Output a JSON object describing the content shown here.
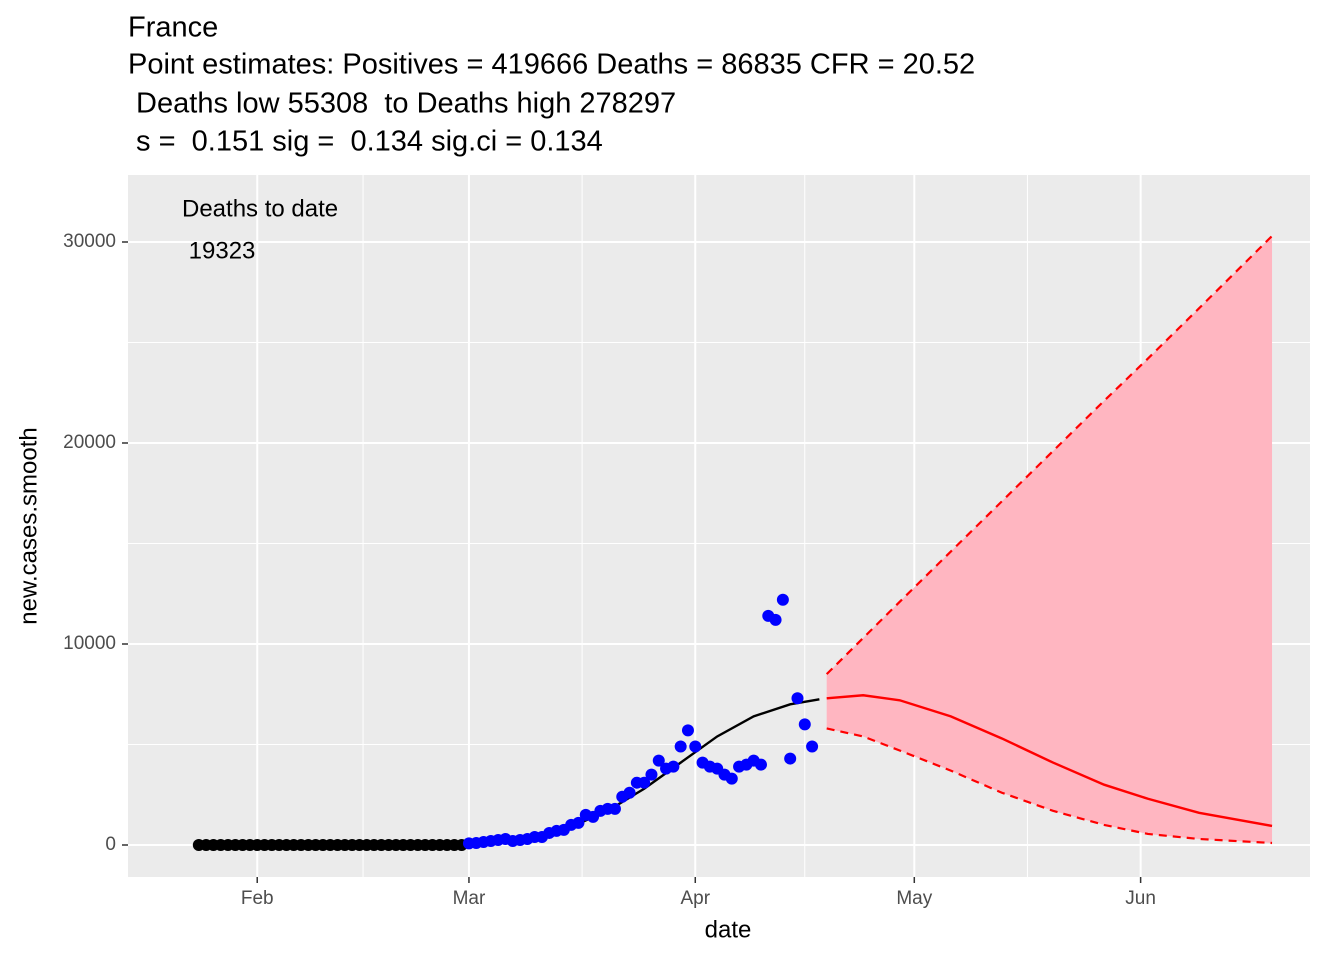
{
  "chart_data": {
    "type": "scatter",
    "title": [
      "France",
      "Point estimates: Positives = 419666 Deaths = 86835 CFR = 20.52",
      " Deaths low 55308  to Deaths high 278297",
      " s =  0.151 sig =  0.134 sig.ci = 0.134"
    ],
    "annotation": [
      "Deaths to date",
      " 19323"
    ],
    "x_label": "date",
    "y_label": "new.cases.smooth",
    "xlim": [
      14.3,
      176.2
    ],
    "ylim": [
      -1592,
      33333
    ],
    "xticks": [
      {
        "value": 32,
        "label": "Feb"
      },
      {
        "value": 61,
        "label": "Mar"
      },
      {
        "value": 92,
        "label": "Apr"
      },
      {
        "value": 122,
        "label": "May"
      },
      {
        "value": 153,
        "label": "Jun"
      }
    ],
    "yticks": [
      0,
      10000,
      20000,
      30000
    ],
    "grid": true,
    "series": [
      {
        "type": "scatter",
        "color": "#000000",
        "x": [
          24,
          25,
          26,
          27,
          28,
          29,
          30,
          31,
          32,
          33,
          34,
          35,
          36,
          37,
          38,
          39,
          40,
          41,
          42,
          43,
          44,
          45,
          46,
          47,
          48,
          49,
          50,
          51,
          52,
          53,
          54,
          55,
          56,
          57,
          58,
          59,
          60
        ],
        "values": [
          0,
          0,
          0,
          0,
          0,
          0,
          0,
          0,
          0,
          0,
          0,
          0,
          0,
          0,
          0,
          0,
          0,
          0,
          0,
          0,
          0,
          0,
          0,
          0,
          0,
          0,
          0,
          0,
          0,
          0,
          0,
          0,
          0,
          0,
          0,
          0,
          0
        ]
      },
      {
        "type": "scatter",
        "color": "#0000ff",
        "x": [
          61,
          62,
          63,
          64,
          65,
          66,
          67,
          68,
          69,
          70,
          71,
          72,
          73,
          74,
          75,
          76,
          77,
          78,
          79,
          80,
          81,
          82,
          83,
          84,
          85,
          86,
          87,
          88,
          89,
          90,
          91,
          92,
          93,
          94,
          95,
          96,
          97,
          98,
          99,
          100,
          101,
          102,
          103,
          104,
          105,
          106,
          107,
          108
        ],
        "values": [
          80,
          100,
          150,
          200,
          250,
          300,
          200,
          250,
          300,
          400,
          400,
          600,
          700,
          750,
          1000,
          1100,
          1500,
          1400,
          1700,
          1800,
          1800,
          2400,
          2600,
          3100,
          3100,
          3500,
          4200,
          3800,
          3900,
          4900,
          5700,
          4900,
          4100,
          3900,
          3800,
          3500,
          3300,
          3900,
          4000,
          4200,
          4000,
          11400,
          11200,
          12200,
          4300,
          7300,
          6000,
          4900
        ]
      },
      {
        "type": "ribbon",
        "color": "#ffb6c1",
        "line_color": "#ff0000",
        "dashed": true,
        "x": [
          110,
          115,
          120,
          127,
          134,
          141,
          148,
          154,
          161,
          171
        ],
        "low": [
          5800,
          5400,
          4700,
          3700,
          2600,
          1700,
          1000,
          550,
          300,
          100
        ],
        "high": [
          8500,
          10300,
          12100,
          14600,
          17100,
          19600,
          22100,
          24200,
          26700,
          30300
        ]
      },
      {
        "type": "line",
        "color": "#000000",
        "x": [
          61,
          65,
          70,
          75,
          80,
          85,
          90,
          95,
          100,
          105,
          109
        ],
        "values": [
          100,
          200,
          450,
          900,
          1700,
          2800,
          4100,
          5400,
          6400,
          7000,
          7250
        ]
      },
      {
        "type": "line",
        "color": "#ff0000",
        "x": [
          110,
          115,
          120,
          127,
          134,
          141,
          148,
          154,
          161,
          171
        ],
        "values": [
          7300,
          7450,
          7200,
          6400,
          5300,
          4100,
          3000,
          2300,
          1600,
          950
        ]
      }
    ]
  }
}
